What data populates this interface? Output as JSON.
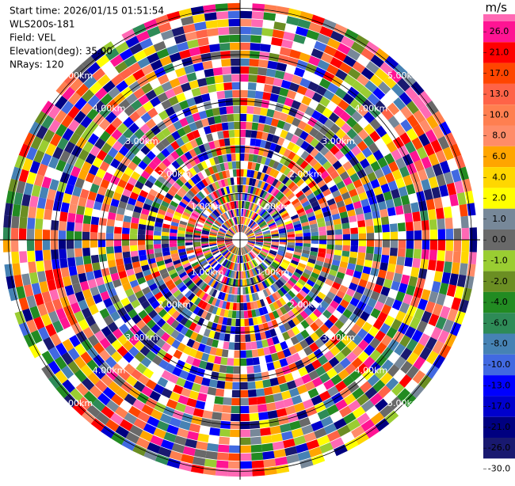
{
  "chart_data": {
    "type": "ppi",
    "header": [
      "Start time: 2026/01/15 01:51:54",
      "WLS200s-181",
      "Field: VEL",
      "Elevation(deg): 35.00",
      "NRays: 120"
    ],
    "rlim": [
      0,
      5.13
    ],
    "rings": [
      {
        "value": 1,
        "label": "1.00km"
      },
      {
        "value": 2,
        "label": "2.00km"
      },
      {
        "value": 3,
        "label": "3.00km"
      },
      {
        "value": 4,
        "label": "4.00km"
      },
      {
        "value": 5,
        "label": "5.00km"
      }
    ],
    "colorbar": {
      "unit": "m/s",
      "ticks": [
        {
          "value": 26,
          "label": "26.0"
        },
        {
          "value": 21,
          "label": "21.0"
        },
        {
          "value": 17,
          "label": "17.0"
        },
        {
          "value": 13,
          "label": "13.0"
        },
        {
          "value": 10,
          "label": "10.0"
        },
        {
          "value": 8,
          "label": "8.0"
        },
        {
          "value": 6,
          "label": "6.0"
        },
        {
          "value": 4,
          "label": "4.0"
        },
        {
          "value": 2,
          "label": "2.0"
        },
        {
          "value": 1,
          "label": "1.0"
        },
        {
          "value": 0,
          "label": "0.0"
        },
        {
          "value": -1,
          "label": "-1.0"
        },
        {
          "value": -2,
          "label": "-2.0"
        },
        {
          "value": -4,
          "label": "-4.0"
        },
        {
          "value": -6,
          "label": "-6.0"
        },
        {
          "value": -8,
          "label": "-8.0"
        },
        {
          "value": -10,
          "label": "-10.0"
        },
        {
          "value": -13,
          "label": "-13.0"
        },
        {
          "value": -17,
          "label": "-17.0"
        },
        {
          "value": -21,
          "label": "-21.0"
        },
        {
          "value": -26,
          "label": "-26.0"
        },
        {
          "value": -30,
          "label": "-30.0"
        }
      ],
      "colors": [
        "#ff69b4",
        "#ff1493",
        "#ff0000",
        "#ff4500",
        "#ff6347",
        "#ff7f50",
        "#ff8c69",
        "#ffa500",
        "#ffd700",
        "#ffff00",
        "#778899",
        "#696969",
        "#9acd32",
        "#6b8e23",
        "#228b22",
        "#2e8b57",
        "#4682b4",
        "#4169e1",
        "#0000ff",
        "#0000cd",
        "#000080",
        "#191970"
      ]
    }
  }
}
